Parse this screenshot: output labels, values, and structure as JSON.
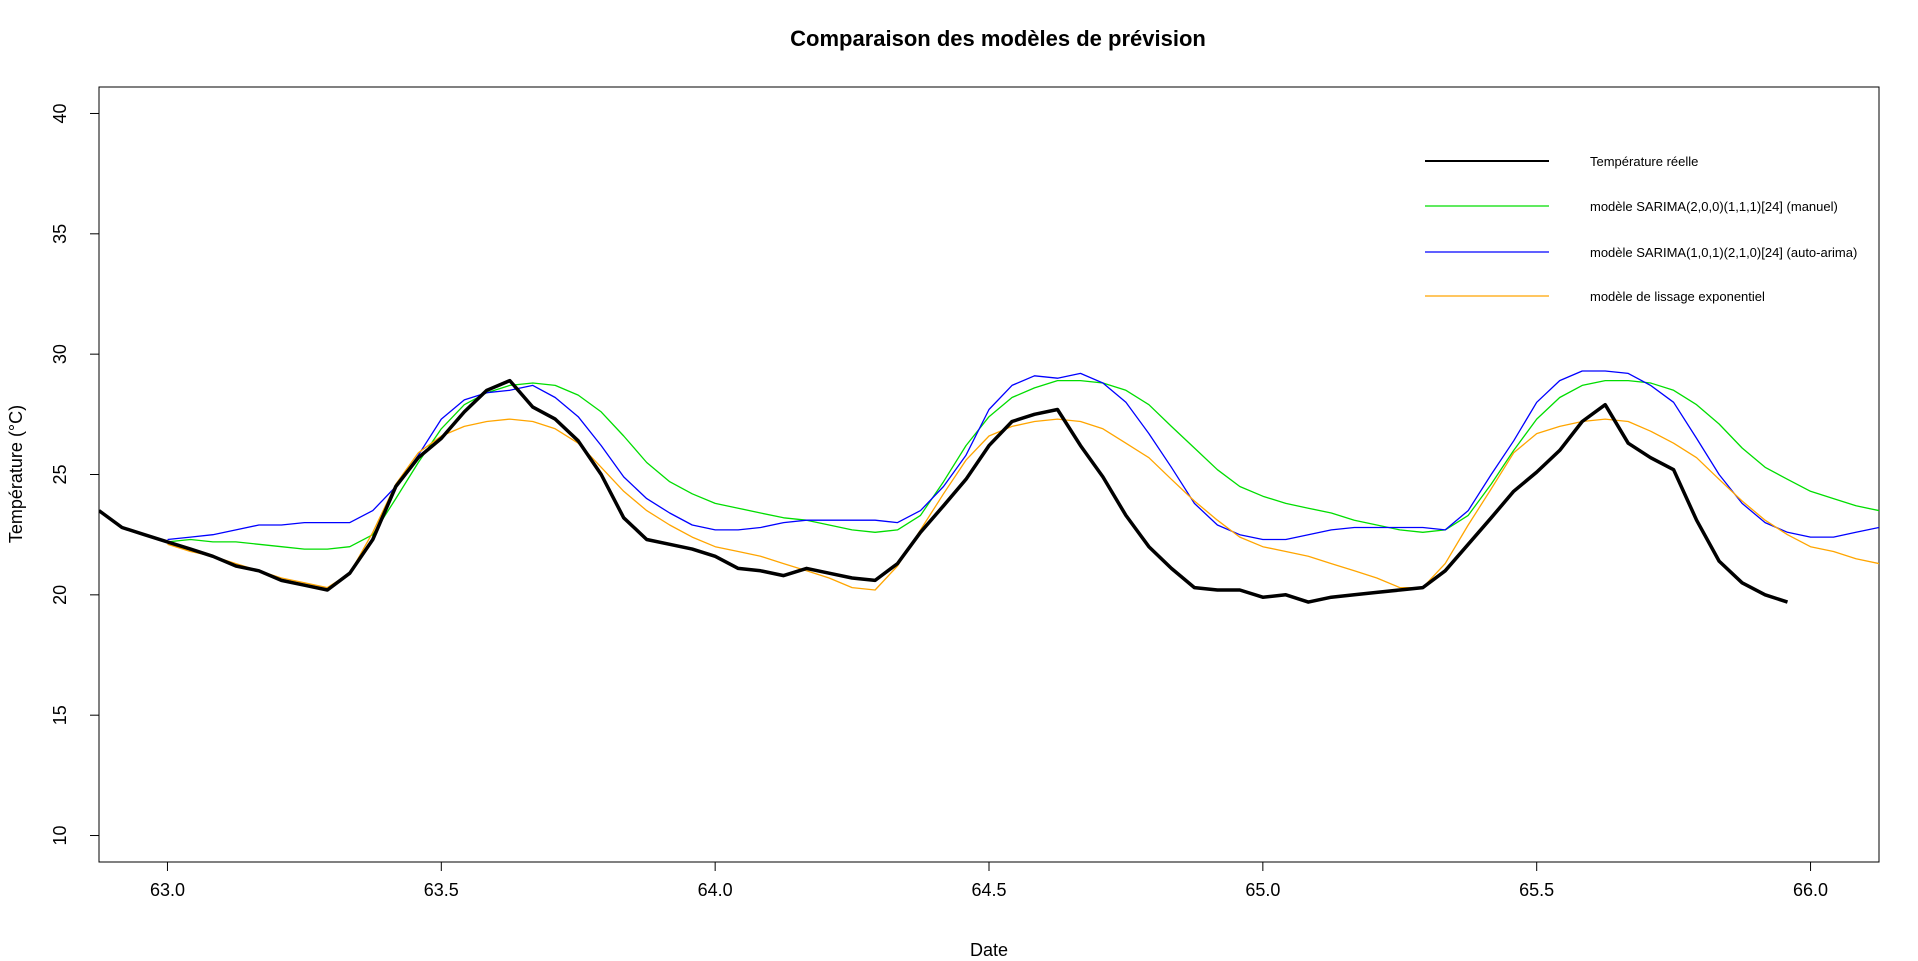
{
  "chart_data": {
    "type": "line",
    "title": "Comparaison des modèles de prévision",
    "xlabel": "Date",
    "ylabel": "Température (°C)",
    "xlim": [
      62.875,
      66.125
    ],
    "ylim": [
      8.9,
      41.1
    ],
    "x_ticks": [
      63.0,
      63.5,
      64.0,
      64.5,
      65.0,
      65.5,
      66.0
    ],
    "x_tick_labels": [
      "63.0",
      "63.5",
      "64.0",
      "64.5",
      "65.0",
      "65.5",
      "66.0"
    ],
    "y_ticks": [
      10,
      15,
      20,
      25,
      30,
      35,
      40
    ],
    "y_tick_labels": [
      "10",
      "15",
      "20",
      "25",
      "30",
      "35",
      "40"
    ],
    "grid": false,
    "legend_position": "top-right",
    "series": [
      {
        "name": "Température réelle",
        "color": "#000000",
        "x": [
          62.875,
          62.917,
          62.958,
          63.0,
          63.042,
          63.083,
          63.125,
          63.167,
          63.208,
          63.25,
          63.292,
          63.333,
          63.375,
          63.417,
          63.458,
          63.5,
          63.542,
          63.583,
          63.625,
          63.667,
          63.708,
          63.75,
          63.792,
          63.833,
          63.875,
          63.917,
          63.958,
          64.0,
          64.042,
          64.083,
          64.125,
          64.167,
          64.208,
          64.25,
          64.292,
          64.333,
          64.375,
          64.417,
          64.458,
          64.5,
          64.542,
          64.583,
          64.625,
          64.667,
          64.708,
          64.75,
          64.792,
          64.833,
          64.875,
          64.917,
          64.958,
          65.0,
          65.042,
          65.083,
          65.125,
          65.167,
          65.208,
          65.25,
          65.292,
          65.333,
          65.375,
          65.417,
          65.458,
          65.5,
          65.542,
          65.583,
          65.625,
          65.667,
          65.708,
          65.75,
          65.792,
          65.833,
          65.875,
          65.917,
          65.958
        ],
        "y": [
          23.5,
          22.8,
          22.5,
          22.2,
          21.9,
          21.6,
          21.2,
          21.0,
          20.6,
          20.4,
          20.2,
          20.9,
          22.3,
          24.5,
          25.7,
          26.5,
          27.6,
          28.5,
          28.9,
          27.8,
          27.3,
          26.4,
          25.0,
          23.2,
          22.3,
          22.1,
          21.9,
          21.6,
          21.1,
          21.0,
          20.8,
          21.1,
          20.9,
          20.7,
          20.6,
          21.3,
          22.6,
          23.7,
          24.8,
          26.2,
          27.2,
          27.5,
          27.7,
          26.2,
          24.9,
          23.3,
          22.0,
          21.1,
          20.3,
          20.2,
          20.2,
          19.9,
          20.0,
          19.7,
          19.9,
          20.0,
          20.1,
          20.2,
          20.3,
          21.0,
          22.1,
          23.2,
          24.3,
          25.1,
          26.0,
          27.2,
          27.9,
          26.3,
          25.7,
          25.2,
          23.1,
          21.4,
          20.5,
          20.0,
          19.7
        ]
      },
      {
        "name": "modèle SARIMA(2,0,0)(1,1,1)[24] (manuel)",
        "color": "#00dd00",
        "x": [
          63.0,
          63.042,
          63.083,
          63.125,
          63.167,
          63.208,
          63.25,
          63.292,
          63.333,
          63.375,
          63.417,
          63.458,
          63.5,
          63.542,
          63.583,
          63.625,
          63.667,
          63.708,
          63.75,
          63.792,
          63.833,
          63.875,
          63.917,
          63.958,
          64.0,
          64.042,
          64.083,
          64.125,
          64.167,
          64.208,
          64.25,
          64.292,
          64.333,
          64.375,
          64.417,
          64.458,
          64.5,
          64.542,
          64.583,
          64.625,
          64.667,
          64.708,
          64.75,
          64.792,
          64.833,
          64.875,
          64.917,
          64.958,
          65.0,
          65.042,
          65.083,
          65.125,
          65.167,
          65.208,
          65.25,
          65.292,
          65.333,
          65.375,
          65.417,
          65.458,
          65.5,
          65.542,
          65.583,
          65.625,
          65.667,
          65.708,
          65.75,
          65.792,
          65.833,
          65.875,
          65.917,
          65.958,
          66.0,
          66.042,
          66.083,
          66.125
        ],
        "y": [
          22.2,
          22.3,
          22.2,
          22.2,
          22.1,
          22.0,
          21.9,
          21.9,
          22.0,
          22.5,
          24.0,
          25.5,
          26.9,
          27.9,
          28.4,
          28.7,
          28.8,
          28.7,
          28.3,
          27.6,
          26.6,
          25.5,
          24.7,
          24.2,
          23.8,
          23.6,
          23.4,
          23.2,
          23.1,
          22.9,
          22.7,
          22.6,
          22.7,
          23.3,
          24.7,
          26.2,
          27.4,
          28.2,
          28.6,
          28.9,
          28.9,
          28.8,
          28.5,
          27.9,
          27.0,
          26.1,
          25.2,
          24.5,
          24.1,
          23.8,
          23.6,
          23.4,
          23.1,
          22.9,
          22.7,
          22.6,
          22.7,
          23.3,
          24.6,
          26.0,
          27.3,
          28.2,
          28.7,
          28.9,
          28.9,
          28.8,
          28.5,
          27.9,
          27.1,
          26.1,
          25.3,
          24.8,
          24.3,
          24.0,
          23.7,
          23.5
        ]
      },
      {
        "name": "modèle SARIMA(1,0,1)(2,1,0)[24] (auto-arima)",
        "color": "#0000ff",
        "x": [
          63.0,
          63.042,
          63.083,
          63.125,
          63.167,
          63.208,
          63.25,
          63.292,
          63.333,
          63.375,
          63.417,
          63.458,
          63.5,
          63.542,
          63.583,
          63.625,
          63.667,
          63.708,
          63.75,
          63.792,
          63.833,
          63.875,
          63.917,
          63.958,
          64.0,
          64.042,
          64.083,
          64.125,
          64.167,
          64.208,
          64.25,
          64.292,
          64.333,
          64.375,
          64.417,
          64.458,
          64.5,
          64.542,
          64.583,
          64.625,
          64.667,
          64.708,
          64.75,
          64.792,
          64.833,
          64.875,
          64.917,
          64.958,
          65.0,
          65.042,
          65.083,
          65.125,
          65.167,
          65.208,
          65.25,
          65.292,
          65.333,
          65.375,
          65.417,
          65.458,
          65.5,
          65.542,
          65.583,
          65.625,
          65.667,
          65.708,
          65.75,
          65.792,
          65.833,
          65.875,
          65.917,
          65.958,
          66.0,
          66.042,
          66.083,
          66.125
        ],
        "y": [
          22.3,
          22.4,
          22.5,
          22.7,
          22.9,
          22.9,
          23.0,
          23.0,
          23.0,
          23.5,
          24.5,
          25.8,
          27.3,
          28.1,
          28.4,
          28.5,
          28.7,
          28.2,
          27.4,
          26.2,
          24.9,
          24.0,
          23.4,
          22.9,
          22.7,
          22.7,
          22.8,
          23.0,
          23.1,
          23.1,
          23.1,
          23.1,
          23.0,
          23.5,
          24.5,
          25.8,
          27.7,
          28.7,
          29.1,
          29.0,
          29.2,
          28.8,
          28.0,
          26.7,
          25.3,
          23.8,
          22.9,
          22.5,
          22.3,
          22.3,
          22.5,
          22.7,
          22.8,
          22.8,
          22.8,
          22.8,
          22.7,
          23.5,
          25.0,
          26.4,
          28.0,
          28.9,
          29.3,
          29.3,
          29.2,
          28.7,
          28.0,
          26.5,
          25.0,
          23.8,
          23.0,
          22.6,
          22.4,
          22.4,
          22.6,
          22.8
        ]
      },
      {
        "name": "modèle de lissage exponentiel",
        "color": "#ffa500",
        "x": [
          63.0,
          63.042,
          63.083,
          63.125,
          63.167,
          63.208,
          63.25,
          63.292,
          63.333,
          63.375,
          63.417,
          63.458,
          63.5,
          63.542,
          63.583,
          63.625,
          63.667,
          63.708,
          63.75,
          63.792,
          63.833,
          63.875,
          63.917,
          63.958,
          64.0,
          64.042,
          64.083,
          64.125,
          64.167,
          64.208,
          64.25,
          64.292,
          64.333,
          64.375,
          64.417,
          64.458,
          64.5,
          64.542,
          64.583,
          64.625,
          64.667,
          64.708,
          64.75,
          64.792,
          64.833,
          64.875,
          64.917,
          64.958,
          65.0,
          65.042,
          65.083,
          65.125,
          65.167,
          65.208,
          65.25,
          65.292,
          65.333,
          65.375,
          65.417,
          65.458,
          65.5,
          65.542,
          65.583,
          65.625,
          65.667,
          65.708,
          65.75,
          65.792,
          65.833,
          65.875,
          65.917,
          65.958,
          66.0,
          66.042,
          66.083,
          66.125
        ],
        "y": [
          22.1,
          21.8,
          21.6,
          21.3,
          21.0,
          20.7,
          20.5,
          20.3,
          20.9,
          22.6,
          24.6,
          25.9,
          26.6,
          27.0,
          27.2,
          27.3,
          27.2,
          26.9,
          26.3,
          25.3,
          24.3,
          23.5,
          22.9,
          22.4,
          22.0,
          21.8,
          21.6,
          21.3,
          21.0,
          20.7,
          20.3,
          20.2,
          21.2,
          22.7,
          24.2,
          25.6,
          26.6,
          27.0,
          27.2,
          27.3,
          27.2,
          26.9,
          26.3,
          25.7,
          24.8,
          23.9,
          23.1,
          22.4,
          22.0,
          21.8,
          21.6,
          21.3,
          21.0,
          20.7,
          20.3,
          20.3,
          21.3,
          22.9,
          24.4,
          25.9,
          26.7,
          27.0,
          27.2,
          27.3,
          27.2,
          26.8,
          26.3,
          25.7,
          24.8,
          23.9,
          23.1,
          22.5,
          22.0,
          21.8,
          21.5,
          21.3
        ]
      }
    ]
  }
}
